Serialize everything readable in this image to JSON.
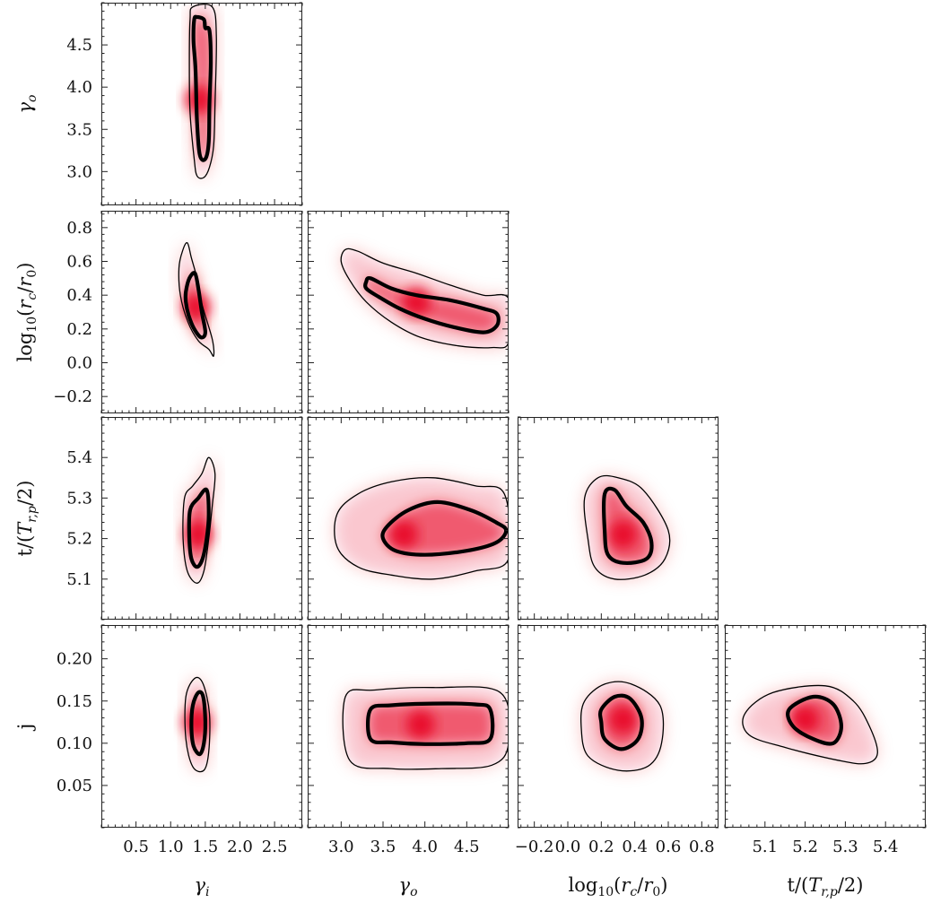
{
  "chart_data": {
    "type": "corner",
    "title": "",
    "params": [
      {
        "key": "gi",
        "label": "γi",
        "range": [
          0.0,
          2.9
        ],
        "ticks": [
          0.5,
          1.0,
          1.5,
          2.0,
          2.5
        ],
        "tick_labels": [
          "0.5",
          "1.0",
          "1.5",
          "2.0",
          "2.5"
        ]
      },
      {
        "key": "go",
        "label": "γo",
        "range": [
          2.6,
          5.0
        ],
        "ticks": [
          3.0,
          3.5,
          4.0,
          4.5
        ],
        "tick_labels": [
          "3.0",
          "3.5",
          "4.0",
          "4.5"
        ]
      },
      {
        "key": "rc",
        "label": "log10(rc/r0)",
        "range": [
          -0.3,
          0.9
        ],
        "ticks": [
          -0.2,
          0.0,
          0.2,
          0.4,
          0.6,
          0.8
        ],
        "tick_labels": [
          "−0.2",
          "0.0",
          "0.2",
          "0.4",
          "0.6",
          "0.8"
        ]
      },
      {
        "key": "t",
        "label": "t/(Tr,p/2)",
        "range": [
          5.0,
          5.5
        ],
        "ticks": [
          5.1,
          5.2,
          5.3,
          5.4
        ],
        "tick_labels": [
          "5.1",
          "5.2",
          "5.3",
          "5.4"
        ]
      },
      {
        "key": "j",
        "label": "j",
        "range": [
          0.0,
          0.24
        ],
        "ticks": [
          0.05,
          0.1,
          0.15,
          0.2
        ],
        "tick_labels": [
          "0.05",
          "0.10",
          "0.15",
          "0.20"
        ]
      }
    ],
    "row_axis_labels": [
      "γo",
      "log10(rc/r0)",
      "t/(Tr,p/2)",
      "j"
    ],
    "col_axis_labels": [
      "γi",
      "γo",
      "log10(rc/r0)",
      "t/(Tr,p/2)"
    ],
    "col_tick_labels": [
      [
        "0.5",
        "1.0",
        "1.5",
        "2.0",
        "2.5"
      ],
      [
        "3.0",
        "3.5",
        "4.0",
        "4.5"
      ],
      [
        "−0.2",
        "0.0",
        "0.2",
        "0.4",
        "0.6",
        "0.8"
      ],
      [
        "5.1",
        "5.2",
        "5.3",
        "5.4"
      ]
    ],
    "row_tick_labels": [
      [
        "3.0",
        "3.5",
        "4.0",
        "4.5"
      ],
      [
        "−0.2",
        "0.0",
        "0.2",
        "0.4",
        "0.6",
        "0.8"
      ],
      [
        "5.1",
        "5.2",
        "5.3",
        "5.4"
      ],
      [
        "0.05",
        "0.10",
        "0.15",
        "0.20"
      ]
    ],
    "contour_levels": [
      "68%",
      "95%"
    ],
    "colors": {
      "density": "#e8001c",
      "contour": "#000000",
      "frame": "#222222"
    },
    "panels": [
      {
        "row": 0,
        "col": 0,
        "x": "gi",
        "y": "go",
        "peak": [
          1.41,
          3.85
        ],
        "inner": [
          [
            1.38,
            4.83
          ],
          [
            1.48,
            4.8
          ],
          [
            1.5,
            4.7
          ],
          [
            1.56,
            4.67
          ],
          [
            1.58,
            4.3
          ],
          [
            1.56,
            3.8
          ],
          [
            1.55,
            3.35
          ],
          [
            1.5,
            3.15
          ],
          [
            1.42,
            3.2
          ],
          [
            1.38,
            3.6
          ],
          [
            1.36,
            4.2
          ],
          [
            1.33,
            4.55
          ],
          [
            1.34,
            4.8
          ]
        ],
        "outer": [
          [
            1.32,
            4.95
          ],
          [
            1.6,
            4.95
          ],
          [
            1.66,
            4.6
          ],
          [
            1.64,
            3.8
          ],
          [
            1.62,
            3.3
          ],
          [
            1.56,
            3.05
          ],
          [
            1.48,
            2.93
          ],
          [
            1.38,
            2.95
          ],
          [
            1.34,
            3.15
          ],
          [
            1.28,
            3.7
          ],
          [
            1.27,
            4.3
          ],
          [
            1.28,
            4.8
          ]
        ]
      },
      {
        "row": 1,
        "col": 0,
        "x": "gi",
        "y": "rc",
        "peak": [
          1.37,
          0.33
        ],
        "inner": [
          [
            1.22,
            0.42
          ],
          [
            1.27,
            0.5
          ],
          [
            1.35,
            0.53
          ],
          [
            1.4,
            0.44
          ],
          [
            1.45,
            0.3
          ],
          [
            1.5,
            0.18
          ],
          [
            1.44,
            0.15
          ],
          [
            1.34,
            0.2
          ],
          [
            1.26,
            0.28
          ],
          [
            1.22,
            0.36
          ]
        ],
        "outer": [
          [
            1.12,
            0.56
          ],
          [
            1.17,
            0.66
          ],
          [
            1.24,
            0.71
          ],
          [
            1.3,
            0.62
          ],
          [
            1.38,
            0.5
          ],
          [
            1.45,
            0.35
          ],
          [
            1.6,
            0.14
          ],
          [
            1.62,
            0.04
          ],
          [
            1.55,
            0.08
          ],
          [
            1.4,
            0.13
          ],
          [
            1.25,
            0.24
          ],
          [
            1.14,
            0.4
          ]
        ]
      },
      {
        "row": 1,
        "col": 1,
        "x": "go",
        "y": "rc",
        "peak": [
          3.9,
          0.36
        ],
        "inner": [
          [
            3.3,
            0.48
          ],
          [
            3.35,
            0.5
          ],
          [
            3.6,
            0.44
          ],
          [
            3.9,
            0.4
          ],
          [
            4.3,
            0.37
          ],
          [
            4.7,
            0.32
          ],
          [
            4.86,
            0.29
          ],
          [
            4.86,
            0.22
          ],
          [
            4.7,
            0.18
          ],
          [
            4.35,
            0.21
          ],
          [
            4.0,
            0.26
          ],
          [
            3.7,
            0.32
          ],
          [
            3.45,
            0.39
          ],
          [
            3.3,
            0.44
          ]
        ],
        "outer": [
          [
            3.05,
            0.67
          ],
          [
            3.2,
            0.66
          ],
          [
            3.5,
            0.59
          ],
          [
            3.9,
            0.53
          ],
          [
            4.3,
            0.46
          ],
          [
            4.7,
            0.4
          ],
          [
            5.0,
            0.38
          ],
          [
            5.0,
            0.12
          ],
          [
            4.8,
            0.09
          ],
          [
            4.4,
            0.1
          ],
          [
            3.95,
            0.15
          ],
          [
            3.6,
            0.24
          ],
          [
            3.3,
            0.36
          ],
          [
            3.1,
            0.49
          ],
          [
            3.0,
            0.6
          ]
        ]
      },
      {
        "row": 2,
        "col": 0,
        "x": "gi",
        "y": "t",
        "peak": [
          1.4,
          5.21
        ],
        "inner": [
          [
            1.28,
            5.27
          ],
          [
            1.4,
            5.3
          ],
          [
            1.52,
            5.32
          ],
          [
            1.55,
            5.26
          ],
          [
            1.52,
            5.2
          ],
          [
            1.46,
            5.15
          ],
          [
            1.38,
            5.13
          ],
          [
            1.3,
            5.15
          ],
          [
            1.27,
            5.2
          ]
        ],
        "outer": [
          [
            1.2,
            5.3
          ],
          [
            1.32,
            5.33
          ],
          [
            1.45,
            5.36
          ],
          [
            1.55,
            5.4
          ],
          [
            1.64,
            5.36
          ],
          [
            1.6,
            5.28
          ],
          [
            1.55,
            5.2
          ],
          [
            1.48,
            5.12
          ],
          [
            1.38,
            5.09
          ],
          [
            1.24,
            5.12
          ],
          [
            1.18,
            5.2
          ]
        ]
      },
      {
        "row": 2,
        "col": 1,
        "x": "go",
        "y": "t",
        "peak": [
          3.75,
          5.21
        ],
        "inner": [
          [
            3.55,
            5.23
          ],
          [
            3.8,
            5.27
          ],
          [
            4.15,
            5.29
          ],
          [
            4.55,
            5.27
          ],
          [
            4.85,
            5.24
          ],
          [
            4.97,
            5.22
          ],
          [
            4.85,
            5.19
          ],
          [
            4.5,
            5.17
          ],
          [
            4.0,
            5.16
          ],
          [
            3.65,
            5.17
          ],
          [
            3.5,
            5.2
          ]
        ],
        "outer": [
          [
            2.95,
            5.26
          ],
          [
            3.2,
            5.31
          ],
          [
            3.6,
            5.34
          ],
          [
            4.1,
            5.35
          ],
          [
            4.6,
            5.33
          ],
          [
            4.95,
            5.31
          ],
          [
            5.0,
            5.15
          ],
          [
            4.6,
            5.12
          ],
          [
            4.1,
            5.1
          ],
          [
            3.6,
            5.11
          ],
          [
            3.2,
            5.13
          ],
          [
            2.95,
            5.18
          ]
        ]
      },
      {
        "row": 2,
        "col": 2,
        "x": "rc",
        "y": "t",
        "peak": [
          0.33,
          5.21
        ],
        "inner": [
          [
            0.22,
            5.31
          ],
          [
            0.28,
            5.32
          ],
          [
            0.35,
            5.28
          ],
          [
            0.45,
            5.24
          ],
          [
            0.5,
            5.19
          ],
          [
            0.47,
            5.15
          ],
          [
            0.33,
            5.14
          ],
          [
            0.24,
            5.16
          ],
          [
            0.22,
            5.22
          ]
        ],
        "outer": [
          [
            0.1,
            5.3
          ],
          [
            0.18,
            5.35
          ],
          [
            0.3,
            5.35
          ],
          [
            0.45,
            5.32
          ],
          [
            0.6,
            5.22
          ],
          [
            0.58,
            5.15
          ],
          [
            0.46,
            5.11
          ],
          [
            0.28,
            5.1
          ],
          [
            0.16,
            5.13
          ],
          [
            0.12,
            5.2
          ]
        ]
      },
      {
        "row": 3,
        "col": 0,
        "x": "gi",
        "y": "j",
        "peak": [
          1.38,
          0.125
        ],
        "inner": [
          [
            1.32,
            0.145
          ],
          [
            1.4,
            0.16
          ],
          [
            1.47,
            0.155
          ],
          [
            1.5,
            0.125
          ],
          [
            1.48,
            0.1
          ],
          [
            1.42,
            0.087
          ],
          [
            1.33,
            0.097
          ],
          [
            1.3,
            0.12
          ]
        ],
        "outer": [
          [
            1.22,
            0.155
          ],
          [
            1.35,
            0.177
          ],
          [
            1.47,
            0.17
          ],
          [
            1.56,
            0.135
          ],
          [
            1.55,
            0.09
          ],
          [
            1.48,
            0.068
          ],
          [
            1.32,
            0.072
          ],
          [
            1.22,
            0.105
          ]
        ]
      },
      {
        "row": 3,
        "col": 1,
        "x": "go",
        "y": "j",
        "peak": [
          3.95,
          0.122
        ],
        "inner": [
          [
            3.35,
            0.14
          ],
          [
            3.6,
            0.145
          ],
          [
            4.1,
            0.147
          ],
          [
            4.6,
            0.146
          ],
          [
            4.78,
            0.14
          ],
          [
            4.78,
            0.105
          ],
          [
            4.5,
            0.1
          ],
          [
            4.0,
            0.099
          ],
          [
            3.6,
            0.101
          ],
          [
            3.35,
            0.105
          ]
        ],
        "outer": [
          [
            3.05,
            0.155
          ],
          [
            3.4,
            0.163
          ],
          [
            4.1,
            0.166
          ],
          [
            4.9,
            0.16
          ],
          [
            5.0,
            0.1
          ],
          [
            4.8,
            0.074
          ],
          [
            4.2,
            0.07
          ],
          [
            3.6,
            0.07
          ],
          [
            3.1,
            0.08
          ]
        ]
      },
      {
        "row": 3,
        "col": 2,
        "x": "rc",
        "y": "j",
        "peak": [
          0.33,
          0.128
        ],
        "inner": [
          [
            0.2,
            0.14
          ],
          [
            0.28,
            0.155
          ],
          [
            0.37,
            0.153
          ],
          [
            0.44,
            0.13
          ],
          [
            0.42,
            0.105
          ],
          [
            0.32,
            0.093
          ],
          [
            0.22,
            0.105
          ],
          [
            0.2,
            0.125
          ]
        ],
        "outer": [
          [
            0.1,
            0.15
          ],
          [
            0.22,
            0.17
          ],
          [
            0.38,
            0.17
          ],
          [
            0.55,
            0.145
          ],
          [
            0.56,
            0.1
          ],
          [
            0.48,
            0.073
          ],
          [
            0.3,
            0.068
          ],
          [
            0.12,
            0.085
          ],
          [
            0.08,
            0.12
          ]
        ]
      },
      {
        "row": 3,
        "col": 3,
        "x": "t",
        "y": "j",
        "peak": [
          5.2,
          0.128
        ],
        "inner": [
          [
            5.16,
            0.14
          ],
          [
            5.22,
            0.155
          ],
          [
            5.27,
            0.146
          ],
          [
            5.29,
            0.12
          ],
          [
            5.27,
            0.1
          ],
          [
            5.22,
            0.105
          ],
          [
            5.17,
            0.12
          ]
        ],
        "outer": [
          [
            5.05,
            0.135
          ],
          [
            5.12,
            0.16
          ],
          [
            5.25,
            0.168
          ],
          [
            5.32,
            0.15
          ],
          [
            5.36,
            0.12
          ],
          [
            5.38,
            0.088
          ],
          [
            5.35,
            0.076
          ],
          [
            5.28,
            0.08
          ],
          [
            5.15,
            0.095
          ],
          [
            5.06,
            0.11
          ]
        ]
      }
    ]
  }
}
